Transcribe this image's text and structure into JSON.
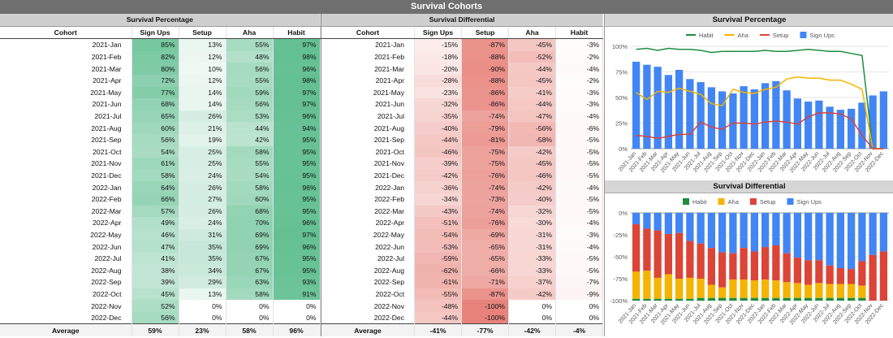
{
  "title": "Survival Cohorts",
  "left_table": {
    "section_title": "Survival Percentage",
    "headers": [
      "Cohort",
      "Sign Ups",
      "Setup",
      "Aha",
      "Habit"
    ],
    "rows": [
      [
        "2021-Jan",
        "85%",
        "13%",
        "55%",
        "97%"
      ],
      [
        "2021-Feb",
        "82%",
        "12%",
        "48%",
        "98%"
      ],
      [
        "2021-Mar",
        "80%",
        "10%",
        "56%",
        "96%"
      ],
      [
        "2021-Apr",
        "72%",
        "12%",
        "55%",
        "98%"
      ],
      [
        "2021-May",
        "77%",
        "14%",
        "59%",
        "97%"
      ],
      [
        "2021-Jun",
        "68%",
        "14%",
        "56%",
        "97%"
      ],
      [
        "2021-Jul",
        "65%",
        "26%",
        "53%",
        "96%"
      ],
      [
        "2021-Aug",
        "60%",
        "21%",
        "44%",
        "94%"
      ],
      [
        "2021-Sep",
        "56%",
        "19%",
        "42%",
        "95%"
      ],
      [
        "2021-Oct",
        "54%",
        "25%",
        "58%",
        "95%"
      ],
      [
        "2021-Nov",
        "61%",
        "25%",
        "55%",
        "95%"
      ],
      [
        "2021-Dec",
        "58%",
        "24%",
        "54%",
        "95%"
      ],
      [
        "2022-Jan",
        "64%",
        "26%",
        "58%",
        "96%"
      ],
      [
        "2022-Feb",
        "66%",
        "27%",
        "60%",
        "95%"
      ],
      [
        "2022-Mar",
        "57%",
        "26%",
        "68%",
        "95%"
      ],
      [
        "2022-Apr",
        "49%",
        "24%",
        "70%",
        "96%"
      ],
      [
        "2022-May",
        "46%",
        "31%",
        "69%",
        "97%"
      ],
      [
        "2022-Jun",
        "47%",
        "35%",
        "69%",
        "96%"
      ],
      [
        "2022-Jul",
        "41%",
        "35%",
        "67%",
        "95%"
      ],
      [
        "2022-Aug",
        "38%",
        "34%",
        "67%",
        "95%"
      ],
      [
        "2022-Sep",
        "39%",
        "29%",
        "63%",
        "93%"
      ],
      [
        "2022-Oct",
        "45%",
        "13%",
        "58%",
        "91%"
      ],
      [
        "2022-Nov",
        "52%",
        "0%",
        "0%",
        "0%"
      ],
      [
        "2022-Dec",
        "56%",
        "0%",
        "0%",
        "0%"
      ]
    ],
    "average": [
      "Average",
      "59%",
      "23%",
      "58%",
      "96%"
    ]
  },
  "right_table": {
    "section_title": "Survival Differential",
    "headers": [
      "Cohort",
      "Sign Ups",
      "Setup",
      "Aha",
      "Habit"
    ],
    "rows": [
      [
        "2021-Jan",
        "-15%",
        "-87%",
        "-45%",
        "-3%"
      ],
      [
        "2021-Feb",
        "-18%",
        "-88%",
        "-52%",
        "-2%"
      ],
      [
        "2021-Mar",
        "-20%",
        "-90%",
        "-44%",
        "-4%"
      ],
      [
        "2021-Apr",
        "-28%",
        "-88%",
        "-45%",
        "-2%"
      ],
      [
        "2021-May",
        "-23%",
        "-86%",
        "-41%",
        "-3%"
      ],
      [
        "2021-Jun",
        "-32%",
        "-86%",
        "-44%",
        "-3%"
      ],
      [
        "2021-Jul",
        "-35%",
        "-74%",
        "-47%",
        "-4%"
      ],
      [
        "2021-Aug",
        "-40%",
        "-79%",
        "-56%",
        "-6%"
      ],
      [
        "2021-Sep",
        "-44%",
        "-81%",
        "-58%",
        "-5%"
      ],
      [
        "2021-Oct",
        "-46%",
        "-75%",
        "-42%",
        "-5%"
      ],
      [
        "2021-Nov",
        "-39%",
        "-75%",
        "-45%",
        "-5%"
      ],
      [
        "2021-Dec",
        "-42%",
        "-76%",
        "-46%",
        "-5%"
      ],
      [
        "2022-Jan",
        "-36%",
        "-74%",
        "-42%",
        "-4%"
      ],
      [
        "2022-Feb",
        "-34%",
        "-73%",
        "-40%",
        "-5%"
      ],
      [
        "2022-Mar",
        "-43%",
        "-74%",
        "-32%",
        "-5%"
      ],
      [
        "2022-Apr",
        "-51%",
        "-76%",
        "-30%",
        "-4%"
      ],
      [
        "2022-May",
        "-54%",
        "-69%",
        "-31%",
        "-3%"
      ],
      [
        "2022-Jun",
        "-53%",
        "-65%",
        "-31%",
        "-4%"
      ],
      [
        "2022-Jul",
        "-59%",
        "-65%",
        "-33%",
        "-5%"
      ],
      [
        "2022-Aug",
        "-62%",
        "-66%",
        "-33%",
        "-5%"
      ],
      [
        "2022-Sep",
        "-61%",
        "-71%",
        "-37%",
        "-7%"
      ],
      [
        "2022-Oct",
        "-55%",
        "-87%",
        "-42%",
        "-9%"
      ],
      [
        "2022-Nov",
        "-48%",
        "-100%",
        "0%",
        "0%"
      ],
      [
        "2022-Dec",
        "-44%",
        "-100%",
        "0%",
        "0%"
      ]
    ],
    "average": [
      "Average",
      "-41%",
      "-77%",
      "-42%",
      "-4%"
    ]
  },
  "colors": {
    "habit": "#1e8e3e",
    "aha": "#f4b400",
    "setup": "#db4437",
    "signups": "#4285f4",
    "heat_green": "#57bb8a",
    "heat_red": "#e67c73"
  },
  "chart_data": [
    {
      "type": "bar",
      "title": "Survival Percentage",
      "categories": [
        "2021-Jan",
        "2021-Feb",
        "2021-Mar",
        "2021-Apr",
        "2021-May",
        "2021-Jun",
        "2021-Jul",
        "2021-Aug",
        "2021-Sep",
        "2021-Oct",
        "2021-Nov",
        "2021-Dec",
        "2022-Jan",
        "2022-Feb",
        "2022-Mar",
        "2022-Apr",
        "2022-May",
        "2022-Jun",
        "2022-Jul",
        "2022-Aug",
        "2022-Sep",
        "2022-Oct",
        "2022-Nov",
        "2022-Dec"
      ],
      "yticks": [
        "0%",
        "25%",
        "50%",
        "75%",
        "100%"
      ],
      "ylim": [
        0,
        100
      ],
      "legend": "top",
      "series": [
        {
          "name": "Habit",
          "kind": "line",
          "values": [
            97,
            98,
            96,
            98,
            97,
            97,
            96,
            94,
            95,
            95,
            95,
            95,
            96,
            95,
            95,
            96,
            97,
            96,
            95,
            95,
            93,
            91,
            0,
            0
          ]
        },
        {
          "name": "Aha",
          "kind": "line",
          "values": [
            55,
            48,
            56,
            55,
            59,
            56,
            53,
            44,
            42,
            58,
            55,
            54,
            58,
            60,
            68,
            70,
            69,
            69,
            67,
            67,
            63,
            58,
            0,
            0
          ]
        },
        {
          "name": "Setup",
          "kind": "line",
          "values": [
            13,
            12,
            10,
            12,
            14,
            14,
            26,
            21,
            19,
            25,
            25,
            24,
            26,
            27,
            26,
            24,
            31,
            35,
            35,
            34,
            29,
            13,
            0,
            0
          ]
        },
        {
          "name": "Sign Ups",
          "kind": "bar",
          "values": [
            85,
            82,
            80,
            72,
            77,
            68,
            65,
            60,
            56,
            54,
            61,
            58,
            64,
            66,
            57,
            49,
            46,
            47,
            41,
            38,
            39,
            45,
            52,
            56
          ]
        }
      ]
    },
    {
      "type": "bar",
      "title": "Survival Differential",
      "stacked": true,
      "categories": [
        "2021-Jan",
        "2021-Feb",
        "2021-Mar",
        "2021-Apr",
        "2021-May",
        "2021-Jun",
        "2021-Jul",
        "2021-Aug",
        "2021-Sep",
        "2021-Oct",
        "2021-Nov",
        "2021-Dec",
        "2022-Jan",
        "2022-Feb",
        "2022-Mar",
        "2022-Apr",
        "2022-May",
        "2022-Jun",
        "2022-Jul",
        "2022-Aug",
        "2022-Sep",
        "2022-Oct",
        "2022-Nov",
        "2022-Dec"
      ],
      "yticks": [
        "0%",
        "-25%",
        "-50%",
        "-75%",
        "-100%"
      ],
      "ylim": [
        -100,
        0
      ],
      "legend": "top",
      "series": [
        {
          "name": "Habit",
          "values": [
            -2,
            -2,
            -2,
            -2,
            -2,
            -2,
            -3,
            -3,
            -3,
            -3,
            -3,
            -3,
            -3,
            -3,
            -3,
            -3,
            -3,
            -3,
            -3,
            -3,
            -3,
            -3,
            0,
            0
          ]
        },
        {
          "name": "Aha",
          "values": [
            -31,
            -32,
            -24,
            -28,
            -23,
            -24,
            -22,
            -15,
            -12,
            -21,
            -21,
            -20,
            -21,
            -20,
            -18,
            -17,
            -15,
            -17,
            -16,
            -16,
            -16,
            -14,
            0,
            0
          ]
        },
        {
          "name": "Setup",
          "values": [
            -54,
            -48,
            -54,
            -46,
            -52,
            -42,
            -40,
            -42,
            -40,
            -30,
            -36,
            -33,
            -37,
            -40,
            -33,
            -29,
            -28,
            -26,
            -21,
            -18,
            -17,
            -28,
            -52,
            -56
          ]
        },
        {
          "name": "Sign Ups",
          "values": [
            -13,
            -18,
            -20,
            -24,
            -23,
            -32,
            -35,
            -40,
            -45,
            -46,
            -40,
            -44,
            -39,
            -37,
            -46,
            -51,
            -54,
            -54,
            -60,
            -63,
            -64,
            -55,
            -48,
            -44
          ]
        }
      ]
    }
  ]
}
